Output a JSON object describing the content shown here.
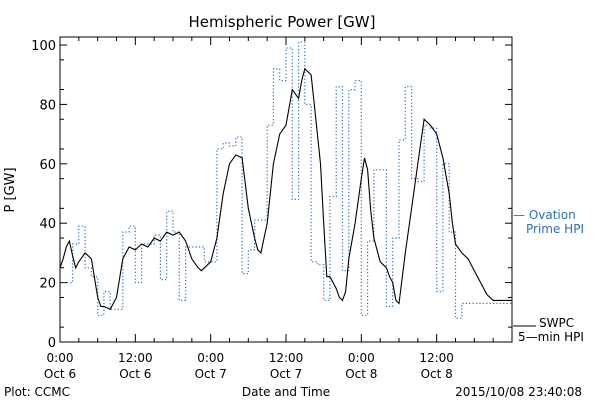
{
  "chart_data": {
    "type": "line",
    "title": "Hemispheric Power [GW]",
    "ylabel": "P [GW]",
    "xlabel": "Date and Time",
    "xlim": [
      0,
      72
    ],
    "ylim": [
      0,
      100
    ],
    "yticks": [
      0,
      20,
      40,
      60,
      80,
      100
    ],
    "xticks": [
      {
        "x": 0,
        "time": "0:00",
        "date": "Oct 6"
      },
      {
        "x": 12,
        "time": "12:00",
        "date": "Oct 6"
      },
      {
        "x": 24,
        "time": "0:00",
        "date": "Oct 7"
      },
      {
        "x": 36,
        "time": "12:00",
        "date": "Oct 7"
      },
      {
        "x": 48,
        "time": "0:00",
        "date": "Oct 8"
      },
      {
        "x": 60,
        "time": "12:00",
        "date": "Oct 8"
      }
    ],
    "series": [
      {
        "name": "Ovation Prime HPI",
        "legend_lines": [
          "— Ovation",
          "Prime HPI"
        ],
        "color": "#2a6fc0",
        "style": "dotted-step",
        "x": [
          0,
          2,
          3,
          4,
          5,
          6,
          7,
          8,
          9,
          10,
          11,
          12,
          13,
          14,
          15,
          16,
          17,
          18,
          19,
          20,
          21,
          22,
          23,
          24,
          25,
          26,
          27,
          28,
          29,
          30,
          31,
          32,
          33,
          34,
          35,
          36,
          37,
          38,
          39,
          40,
          41,
          42,
          43,
          44,
          45,
          46,
          47,
          48,
          49,
          50,
          51,
          52,
          53,
          54,
          55,
          56,
          57,
          58,
          59,
          60,
          61,
          62,
          63,
          64,
          65,
          66,
          67,
          68,
          69,
          70,
          71,
          72
        ],
        "values": [
          20,
          33,
          39,
          25,
          22,
          9,
          17,
          11,
          11,
          37,
          39,
          20,
          33,
          33,
          36,
          21,
          44,
          37,
          14,
          32,
          32,
          32,
          27,
          27,
          65,
          67,
          66,
          69,
          23,
          31,
          41,
          41,
          73,
          92,
          88,
          99,
          48,
          101,
          80,
          27,
          26,
          14,
          49,
          86,
          24,
          85,
          88,
          9,
          34,
          58,
          58,
          12,
          35,
          68,
          86,
          55,
          54,
          73,
          72,
          17,
          60,
          37,
          8,
          13,
          13,
          13,
          13,
          13,
          13,
          13,
          13,
          13
        ]
      },
      {
        "name": "SWPC 5-min HPI",
        "legend_lines": [
          "SWPC",
          "5—min HPI"
        ],
        "color": "#000000",
        "style": "solid",
        "x": [
          0,
          0.5,
          1,
          1.5,
          2,
          2.5,
          3,
          4,
          5,
          6,
          6.5,
          7,
          8,
          9,
          10,
          11,
          12,
          13,
          14,
          15,
          16,
          17,
          18,
          19,
          20,
          21,
          22,
          22.5,
          23,
          24,
          25,
          26,
          27,
          28,
          29,
          30,
          31,
          31.5,
          32,
          33,
          34,
          35,
          36,
          37,
          38,
          38.5,
          39,
          40,
          40.5,
          41,
          41.5,
          42,
          42.5,
          43,
          44,
          44.5,
          45,
          45.5,
          46,
          47,
          48,
          48.5,
          49,
          49.5,
          50,
          51,
          52,
          52.5,
          53,
          53.5,
          54,
          55,
          56,
          57,
          58,
          59,
          60,
          61,
          62,
          62.5,
          63,
          64,
          65,
          66,
          67,
          68,
          69,
          70,
          71,
          72
        ],
        "values": [
          25,
          28,
          32,
          34,
          29,
          25,
          27,
          30,
          28,
          15,
          12,
          12,
          11,
          15,
          28,
          32,
          31,
          33,
          32,
          35,
          34,
          37,
          36,
          37,
          34,
          28,
          25,
          24,
          25,
          27,
          35,
          50,
          60,
          63,
          62,
          45,
          35,
          31,
          30,
          40,
          60,
          70,
          73,
          85,
          82,
          88,
          92,
          90,
          80,
          70,
          60,
          40,
          22,
          22,
          18,
          15,
          14,
          17,
          28,
          40,
          55,
          62,
          58,
          44,
          35,
          27,
          25,
          22,
          20,
          14,
          13,
          30,
          45,
          60,
          75,
          73,
          70,
          62,
          50,
          40,
          33,
          30,
          28,
          24,
          20,
          16,
          14,
          14,
          14,
          14
        ]
      }
    ],
    "footer_left": "Plot: CCMC",
    "footer_right": "2015/10/08 23:40:08",
    "grid": false
  }
}
